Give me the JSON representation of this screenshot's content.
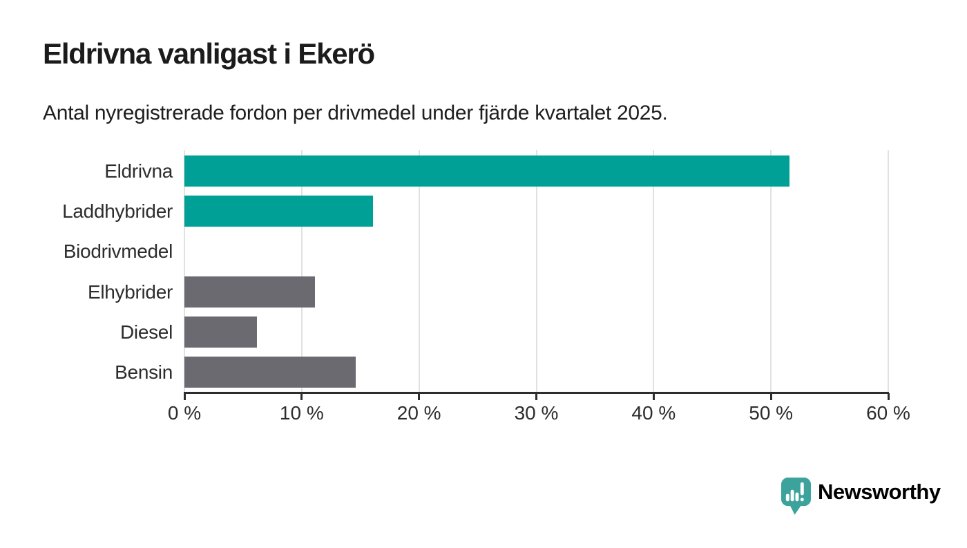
{
  "chart_data": {
    "type": "bar",
    "orientation": "horizontal",
    "title": "Eldrivna vanligast i Ekerö",
    "subtitle": "Antal nyregistrerade fordon per drivmedel under fjärde kvartalet 2025.",
    "categories": [
      "Eldrivna",
      "Laddhybrider",
      "Biodrivmedel",
      "Elhybrider",
      "Diesel",
      "Bensin"
    ],
    "values": [
      51.6,
      16.1,
      0,
      11.1,
      6.2,
      14.6
    ],
    "unit": "%",
    "xlim": [
      0,
      60
    ],
    "x_ticks": [
      0,
      10,
      20,
      30,
      40,
      50,
      60
    ],
    "x_tick_labels": [
      "0 %",
      "10 %",
      "20 %",
      "30 %",
      "40 %",
      "50 %",
      "60 %"
    ],
    "xlabel": "",
    "ylabel": "",
    "grid": "vertical",
    "legend": "none",
    "bar_colors": [
      "#00a096",
      "#00a096",
      "#6b6a70",
      "#6b6a70",
      "#6b6a70",
      "#6b6a70"
    ],
    "highlight_color": "#00a096",
    "default_color": "#6b6a70",
    "gridline_color": "#e1e1e1",
    "axis_color": "#2d2d2d"
  },
  "footer": {
    "logo_text": "Newsworthy",
    "logo_icon": "newsworthy-speech-bubble-bar-chart",
    "logo_icon_color": "#3ba39c",
    "logo_text_color": "#3d9e98"
  }
}
